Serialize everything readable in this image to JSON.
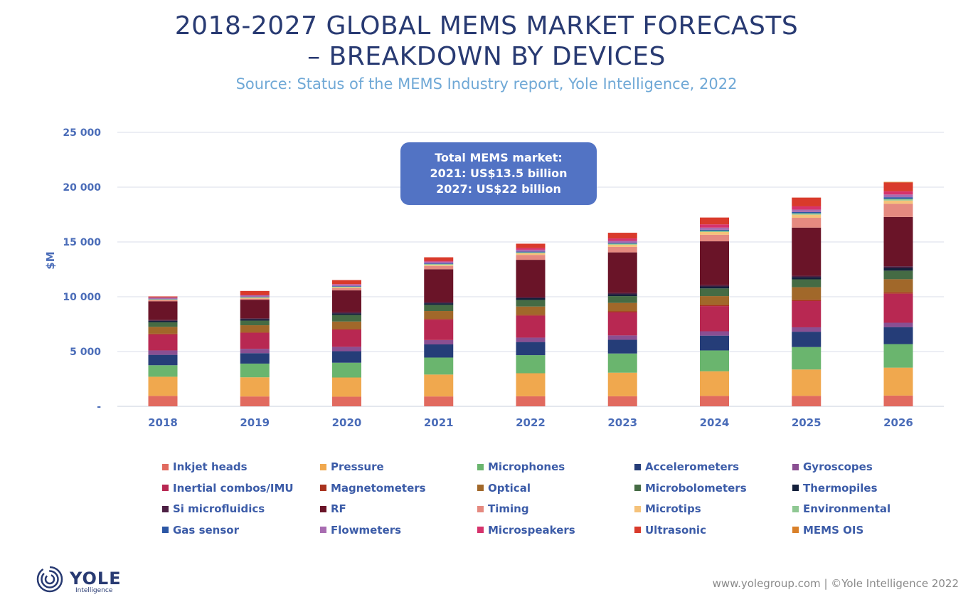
{
  "header": {
    "title_line1": "2018-2027 GLOBAL MEMS MARKET FORECASTS",
    "title_line2": "– BREAKDOWN BY DEVICES",
    "subtitle": "Source: Status of the MEMS Industry report, Yole Intelligence, 2022"
  },
  "callout": {
    "line1": "Total MEMS market:",
    "line2": "2021: US$13.5 billion",
    "line3": "2027: US$22 billion"
  },
  "footer": {
    "text": "www.yolegroup.com | ©Yole Intelligence 2022"
  },
  "logo": {
    "name": "YOLE",
    "sub": "Intelligence"
  },
  "chart_data": {
    "type": "bar",
    "stacked": true,
    "title": "2018-2027 GLOBAL MEMS MARKET FORECASTS – BREAKDOWN BY DEVICES",
    "ylabel": "$M",
    "xlabel": "",
    "ylim": [
      0,
      25000
    ],
    "yticks": [
      0,
      5000,
      10000,
      15000,
      20000,
      25000
    ],
    "ytick_labels": [
      "-",
      "5 000",
      "10 000",
      "15 000",
      "20 000",
      "25 000"
    ],
    "grid": true,
    "legend_position": "bottom",
    "categories": [
      "2018",
      "2019",
      "2020",
      "2021",
      "2022",
      "2023",
      "2024",
      "2025",
      "2026"
    ],
    "series": [
      {
        "name": "Inkjet heads",
        "color": "#e16a5f",
        "values": [
          950,
          900,
          880,
          900,
          920,
          920,
          950,
          960,
          980
        ]
      },
      {
        "name": "Pressure",
        "color": "#f0a84e",
        "values": [
          1750,
          1750,
          1750,
          2000,
          2100,
          2150,
          2250,
          2400,
          2550
        ]
      },
      {
        "name": "Microphones",
        "color": "#6ab56e",
        "values": [
          1050,
          1250,
          1350,
          1550,
          1650,
          1750,
          1900,
          2050,
          2150
        ]
      },
      {
        "name": "Accelerometers",
        "color": "#253d78",
        "values": [
          950,
          950,
          1050,
          1200,
          1200,
          1250,
          1350,
          1400,
          1550
        ]
      },
      {
        "name": "Gyroscopes",
        "color": "#8a4f92",
        "values": [
          400,
          400,
          400,
          400,
          400,
          400,
          400,
          400,
          400
        ]
      },
      {
        "name": "Inertial combos/IMU",
        "color": "#b82852",
        "values": [
          1450,
          1450,
          1550,
          1850,
          2000,
          2100,
          2300,
          2400,
          2650
        ]
      },
      {
        "name": "Magnetometers",
        "color": "#a8321e",
        "values": [
          80,
          80,
          80,
          80,
          90,
          100,
          110,
          110,
          120
        ]
      },
      {
        "name": "Optical",
        "color": "#a1682a",
        "values": [
          620,
          620,
          680,
          720,
          750,
          770,
          800,
          1150,
          1200
        ]
      },
      {
        "name": "Microbolometers",
        "color": "#456b44",
        "values": [
          420,
          420,
          600,
          560,
          600,
          620,
          700,
          720,
          780
        ]
      },
      {
        "name": "Thermopiles",
        "color": "#14203b",
        "values": [
          130,
          130,
          140,
          150,
          160,
          170,
          180,
          200,
          250
        ]
      },
      {
        "name": "Si microfluidics",
        "color": "#4d2044",
        "values": [
          80,
          80,
          100,
          100,
          100,
          120,
          120,
          120,
          150
        ]
      },
      {
        "name": "RF",
        "color": "#6a1428",
        "values": [
          1700,
          1700,
          2000,
          3000,
          3400,
          3700,
          4000,
          4400,
          4500
        ]
      },
      {
        "name": "Timing",
        "color": "#e58a80",
        "values": [
          100,
          100,
          200,
          300,
          450,
          500,
          600,
          900,
          1200
        ]
      },
      {
        "name": "Microtips",
        "color": "#f5c27a",
        "values": [
          50,
          80,
          80,
          100,
          150,
          200,
          250,
          280,
          300
        ]
      },
      {
        "name": "Environmental",
        "color": "#8fc893",
        "values": [
          40,
          50,
          60,
          70,
          80,
          90,
          100,
          120,
          150
        ]
      },
      {
        "name": "Gas sensor",
        "color": "#2c57a5",
        "values": [
          30,
          40,
          50,
          60,
          70,
          80,
          100,
          120,
          150
        ]
      },
      {
        "name": "Flowmeters",
        "color": "#a86cb1",
        "values": [
          130,
          140,
          150,
          160,
          170,
          180,
          200,
          220,
          250
        ]
      },
      {
        "name": "Microspeakers",
        "color": "#d6336c",
        "values": [
          0,
          20,
          40,
          80,
          150,
          220,
          300,
          300,
          300
        ]
      },
      {
        "name": "Ultrasonic",
        "color": "#d93a2b",
        "values": [
          100,
          370,
          360,
          320,
          400,
          520,
          620,
          800,
          800
        ]
      },
      {
        "name": "MEMS OIS",
        "color": "#d98029",
        "values": [
          0,
          0,
          0,
          0,
          0,
          0,
          0,
          0,
          50
        ]
      }
    ]
  }
}
